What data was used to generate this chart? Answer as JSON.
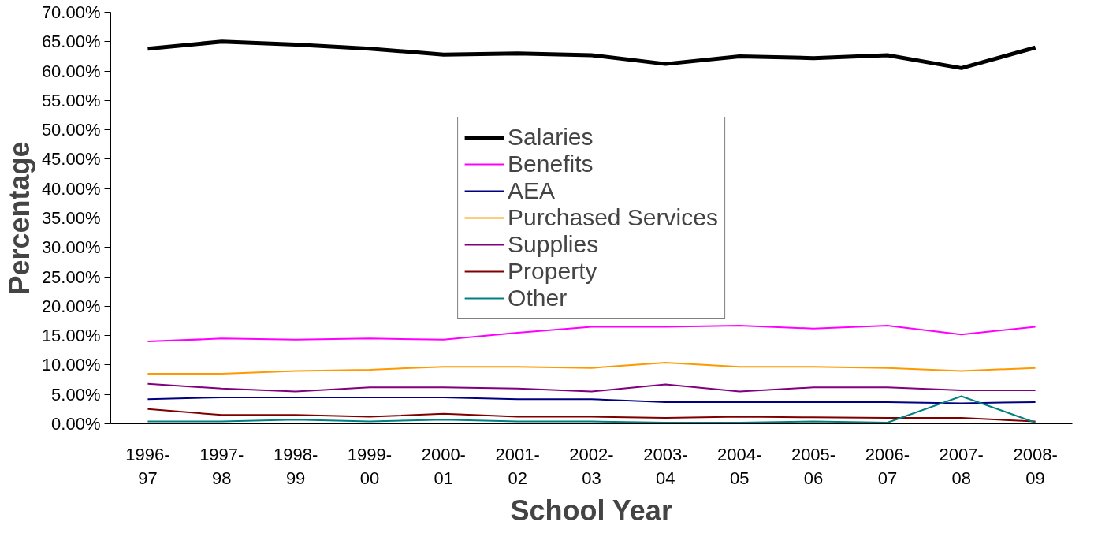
{
  "chart_data": {
    "type": "line",
    "xlabel": "School Year",
    "ylabel": "Percentage",
    "categories": [
      "1996-97",
      "1997-98",
      "1998-99",
      "1999-00",
      "2000-01",
      "2001-02",
      "2002-03",
      "2003-04",
      "2004-05",
      "2005-06",
      "2006-07",
      "2007-08",
      "2008-09"
    ],
    "series": [
      {
        "name": "Salaries",
        "color": "#000000",
        "values": [
          63.8,
          65.0,
          64.5,
          63.8,
          62.8,
          63.0,
          62.7,
          61.2,
          62.5,
          62.2,
          62.7,
          60.5,
          64.0
        ]
      },
      {
        "name": "Benefits",
        "color": "#ff00ff",
        "values": [
          14.0,
          14.5,
          14.3,
          14.5,
          14.3,
          15.5,
          16.5,
          16.5,
          16.7,
          16.2,
          16.7,
          15.2,
          16.5
        ]
      },
      {
        "name": "AEA",
        "color": "#000080",
        "values": [
          4.2,
          4.5,
          4.5,
          4.5,
          4.5,
          4.2,
          4.2,
          3.7,
          3.7,
          3.7,
          3.7,
          3.5,
          3.7
        ]
      },
      {
        "name": "Purchased Services",
        "color": "#ff9900",
        "values": [
          8.5,
          8.5,
          9.0,
          9.2,
          9.7,
          9.7,
          9.5,
          10.4,
          9.7,
          9.7,
          9.5,
          9.0,
          9.5
        ]
      },
      {
        "name": "Supplies",
        "color": "#800080",
        "values": [
          6.8,
          6.0,
          5.5,
          6.2,
          6.2,
          6.0,
          5.5,
          6.7,
          5.5,
          6.2,
          6.2,
          5.7,
          5.7
        ]
      },
      {
        "name": "Property",
        "color": "#800000",
        "values": [
          2.5,
          1.5,
          1.5,
          1.2,
          1.7,
          1.2,
          1.2,
          1.0,
          1.2,
          1.1,
          1.0,
          1.0,
          0.4
        ]
      },
      {
        "name": "Other",
        "color": "#008080",
        "values": [
          0.4,
          0.4,
          0.7,
          0.4,
          0.7,
          0.4,
          0.4,
          0.2,
          0.2,
          0.4,
          0.2,
          4.7,
          0.2
        ]
      }
    ],
    "ylim": [
      0,
      70
    ],
    "yticks": [
      {
        "value": 0,
        "label": "0.00%"
      },
      {
        "value": 5,
        "label": "5.00%"
      },
      {
        "value": 10,
        "label": "10.00%"
      },
      {
        "value": 15,
        "label": "15.00%"
      },
      {
        "value": 20,
        "label": "20.00%"
      },
      {
        "value": 25,
        "label": "25.00%"
      },
      {
        "value": 30,
        "label": "30.00%"
      },
      {
        "value": 35,
        "label": "35.00%"
      },
      {
        "value": 40,
        "label": "40.00%"
      },
      {
        "value": 45,
        "label": "45.00%"
      },
      {
        "value": 50,
        "label": "50.00%"
      },
      {
        "value": 55,
        "label": "55.00%"
      },
      {
        "value": 60,
        "label": "60.00%"
      },
      {
        "value": 65,
        "label": "65.00%"
      },
      {
        "value": 70,
        "label": "70.00%"
      }
    ],
    "grid": false,
    "legend": "center",
    "marker": "none",
    "line_style": "solid"
  }
}
